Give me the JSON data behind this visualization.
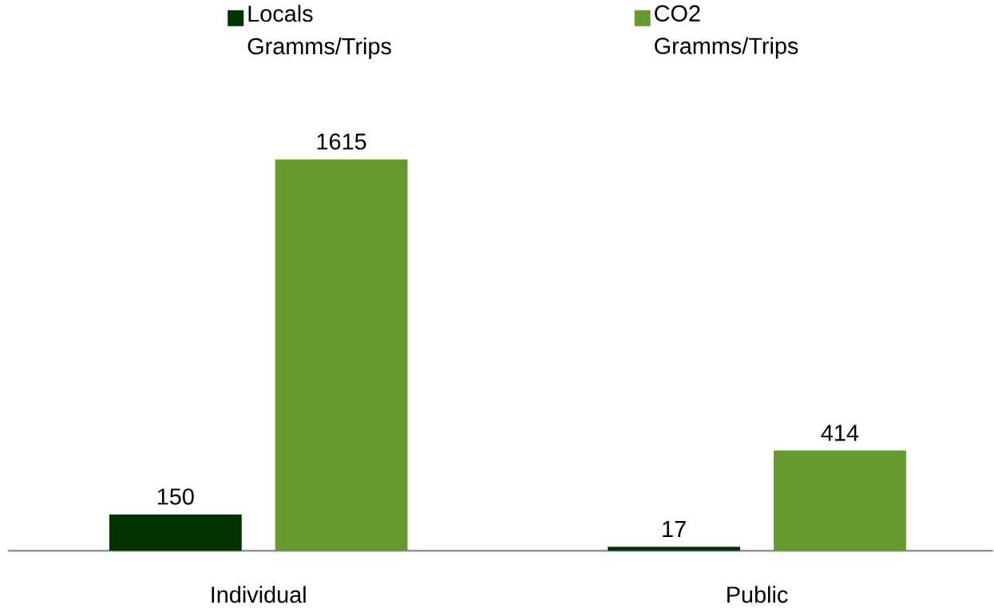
{
  "chart_data": {
    "type": "bar",
    "categories": [
      "Individual",
      "Public"
    ],
    "series": [
      {
        "name": "Locals Gramms/Trips",
        "color": "#003300",
        "values": [
          150,
          17
        ]
      },
      {
        "name": "CO2 Gramms/Trips",
        "color": "#669a2e",
        "values": [
          1615,
          414
        ]
      }
    ],
    "data_labels": true,
    "legend": "top"
  }
}
